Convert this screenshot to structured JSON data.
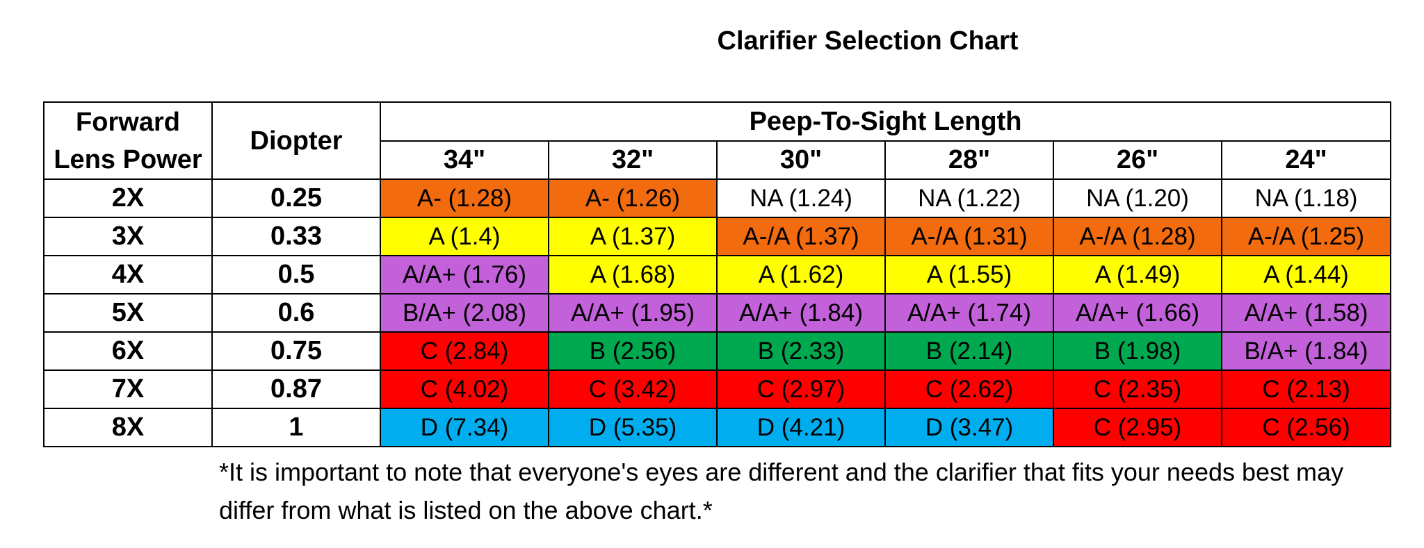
{
  "chart_data": {
    "type": "table",
    "title": "Clarifier Selection Chart",
    "row_headers": [
      "Forward Lens Power",
      "Diopter"
    ],
    "column_group_label": "Peep-To-Sight Length",
    "columns": [
      "34\"",
      "32\"",
      "30\"",
      "28\"",
      "26\"",
      "24\""
    ],
    "rows": [
      {
        "power": "2X",
        "diopter": "0.25",
        "cells": [
          {
            "text": "A- (1.28)",
            "color": "#F26B0F"
          },
          {
            "text": "A- (1.26)",
            "color": "#F26B0F"
          },
          {
            "text": "NA (1.24)",
            "color": "#FFFFFF"
          },
          {
            "text": "NA (1.22)",
            "color": "#FFFFFF"
          },
          {
            "text": "NA (1.20)",
            "color": "#FFFFFF"
          },
          {
            "text": "NA (1.18)",
            "color": "#FFFFFF"
          }
        ]
      },
      {
        "power": "3X",
        "diopter": "0.33",
        "cells": [
          {
            "text": "A (1.4)",
            "color": "#FFFF00"
          },
          {
            "text": "A (1.37)",
            "color": "#FFFF00"
          },
          {
            "text": "A-/A (1.37)",
            "color": "#F26B0F"
          },
          {
            "text": "A-/A (1.31)",
            "color": "#F26B0F"
          },
          {
            "text": "A-/A (1.28)",
            "color": "#F26B0F"
          },
          {
            "text": "A-/A (1.25)",
            "color": "#F26B0F"
          }
        ]
      },
      {
        "power": "4X",
        "diopter": "0.5",
        "cells": [
          {
            "text": "A/A+ (1.76)",
            "color": "#C261D9"
          },
          {
            "text": "A (1.68)",
            "color": "#FFFF00"
          },
          {
            "text": "A (1.62)",
            "color": "#FFFF00"
          },
          {
            "text": "A (1.55)",
            "color": "#FFFF00"
          },
          {
            "text": "A (1.49)",
            "color": "#FFFF00"
          },
          {
            "text": "A (1.44)",
            "color": "#FFFF00"
          }
        ]
      },
      {
        "power": "5X",
        "diopter": "0.6",
        "cells": [
          {
            "text": "B/A+ (2.08)",
            "color": "#C261D9"
          },
          {
            "text": "A/A+ (1.95)",
            "color": "#C261D9"
          },
          {
            "text": "A/A+ (1.84)",
            "color": "#C261D9"
          },
          {
            "text": "A/A+ (1.74)",
            "color": "#C261D9"
          },
          {
            "text": "A/A+ (1.66)",
            "color": "#C261D9"
          },
          {
            "text": "A/A+ (1.58)",
            "color": "#C261D9"
          }
        ]
      },
      {
        "power": "6X",
        "diopter": "0.75",
        "cells": [
          {
            "text": "C (2.84)",
            "color": "#FF0000"
          },
          {
            "text": "B (2.56)",
            "color": "#00A94F"
          },
          {
            "text": "B (2.33)",
            "color": "#00A94F"
          },
          {
            "text": "B (2.14)",
            "color": "#00A94F"
          },
          {
            "text": "B (1.98)",
            "color": "#00A94F"
          },
          {
            "text": "B/A+ (1.84)",
            "color": "#C261D9"
          }
        ]
      },
      {
        "power": "7X",
        "diopter": "0.87",
        "cells": [
          {
            "text": "C (4.02)",
            "color": "#FF0000"
          },
          {
            "text": "C (3.42)",
            "color": "#FF0000"
          },
          {
            "text": "C (2.97)",
            "color": "#FF0000"
          },
          {
            "text": "C (2.62)",
            "color": "#FF0000"
          },
          {
            "text": "C (2.35)",
            "color": "#FF0000"
          },
          {
            "text": "C (2.13)",
            "color": "#FF0000"
          }
        ]
      },
      {
        "power": "8X",
        "diopter": "1",
        "cells": [
          {
            "text": "D (7.34)",
            "color": "#00AEEF"
          },
          {
            "text": "D (5.35)",
            "color": "#00AEEF"
          },
          {
            "text": "D (4.21)",
            "color": "#00AEEF"
          },
          {
            "text": "D (3.47)",
            "color": "#00AEEF"
          },
          {
            "text": "C (2.95)",
            "color": "#FF0000"
          },
          {
            "text": "C (2.56)",
            "color": "#FF0000"
          }
        ]
      }
    ],
    "note": "*It is important to note that everyone's eyes are different and the clarifier that fits your needs best may differ from what is listed on the above chart.*"
  }
}
